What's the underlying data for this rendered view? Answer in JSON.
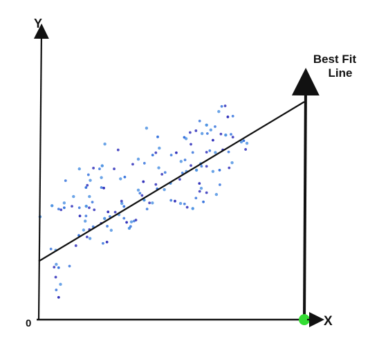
{
  "chart_data": {
    "type": "scatter",
    "title": "",
    "xlabel": "X",
    "ylabel": "Y",
    "origin_label": "0",
    "grid": false,
    "legend": "none",
    "annotation": {
      "text_line1": "Best Fit",
      "text_line2": "Line"
    },
    "colors": {
      "axis": "#111111",
      "fit_line": "#111111",
      "point_light": "#4a90e2",
      "point_mid": "#2f6fdc",
      "point_dark": "#2a2ab8",
      "origin_marker": "#33dd33"
    },
    "fit_line": {
      "x": [
        0,
        100
      ],
      "y": [
        22.8,
        85.1
      ]
    },
    "xlim": [
      0,
      100
    ],
    "ylim": [
      0,
      100
    ],
    "series": [
      {
        "values": [
          [
            0.5,
            40.2
          ],
          [
            4.6,
            27.6
          ],
          [
            5.8,
            20.5
          ],
          [
            6.6,
            21.6
          ],
          [
            7.5,
            20.3
          ],
          [
            6.4,
            16.6
          ],
          [
            8.2,
            13.8
          ],
          [
            6.6,
            11.6
          ],
          [
            7.5,
            8.7
          ],
          [
            6.4,
            27.1
          ],
          [
            11.6,
            20.9
          ],
          [
            14.0,
            28.9
          ],
          [
            5.0,
            44.5
          ],
          [
            7.5,
            43.2
          ],
          [
            8.4,
            42.9
          ],
          [
            9.6,
            45.6
          ],
          [
            9.6,
            43.7
          ],
          [
            12.5,
            44.3
          ],
          [
            13.1,
            48.1
          ],
          [
            15.3,
            43.7
          ],
          [
            15.5,
            40.5
          ],
          [
            17.5,
            38.5
          ],
          [
            17.8,
            40.5
          ],
          [
            19.0,
            43.7
          ],
          [
            17.9,
            44.3
          ],
          [
            20.2,
            45.9
          ],
          [
            20.9,
            42.9
          ],
          [
            19.1,
            48.1
          ],
          [
            17.8,
            51.6
          ],
          [
            18.3,
            52.5
          ],
          [
            19.4,
            54.4
          ],
          [
            23.6,
            51.6
          ],
          [
            24.5,
            51.4
          ],
          [
            23.6,
            55.5
          ],
          [
            22.9,
            58.9
          ],
          [
            20.6,
            59.2
          ],
          [
            23.9,
            60.1
          ],
          [
            20.5,
            36.3
          ],
          [
            19.1,
            35.2
          ],
          [
            16.9,
            35.0
          ],
          [
            15.1,
            32.9
          ],
          [
            18.2,
            32.3
          ],
          [
            19.3,
            31.7
          ],
          [
            24.2,
            29.8
          ],
          [
            25.7,
            30.3
          ],
          [
            27.3,
            34.9
          ],
          [
            25.8,
            36.5
          ],
          [
            23.5,
            37.6
          ],
          [
            24.8,
            39.5
          ],
          [
            26.8,
            40.3
          ],
          [
            28.8,
            42.0
          ],
          [
            31.3,
            45.4
          ],
          [
            32.1,
            44.2
          ],
          [
            31.2,
            46.3
          ],
          [
            30.2,
            41.0
          ],
          [
            32.1,
            39.6
          ],
          [
            33.1,
            38.0
          ],
          [
            34.9,
            38.2
          ],
          [
            35.9,
            38.5
          ],
          [
            36.6,
            38.9
          ],
          [
            34.1,
            35.7
          ],
          [
            34.6,
            36.4
          ],
          [
            28.4,
            58.9
          ],
          [
            30.8,
            55.0
          ],
          [
            32.4,
            55.7
          ],
          [
            35.4,
            60.7
          ],
          [
            37.5,
            62.7
          ],
          [
            39.8,
            61.1
          ],
          [
            39.4,
            53.9
          ],
          [
            37.5,
            50.6
          ],
          [
            38.1,
            49.4
          ],
          [
            38.9,
            48.5
          ],
          [
            39.7,
            46.7
          ],
          [
            40.8,
            43.2
          ],
          [
            41.7,
            45.6
          ],
          [
            42.8,
            45.6
          ],
          [
            44.6,
            51.1
          ],
          [
            44.1,
            52.8
          ],
          [
            47.3,
            50.8
          ],
          [
            49.8,
            46.6
          ],
          [
            51.3,
            46.3
          ],
          [
            53.4,
            45.4
          ],
          [
            54.9,
            45.2
          ],
          [
            55.9,
            43.9
          ],
          [
            58.0,
            43.4
          ],
          [
            59.2,
            47.5
          ],
          [
            60.6,
            50.1
          ],
          [
            61.2,
            51.3
          ],
          [
            62.0,
            46.0
          ],
          [
            63.2,
            49.6
          ],
          [
            66.9,
            48.9
          ],
          [
            68.2,
            52.7
          ],
          [
            60.5,
            53.2
          ],
          [
            55.6,
            57.9
          ],
          [
            54.1,
            57.3
          ],
          [
            53.1,
            54.8
          ],
          [
            49.6,
            53.3
          ],
          [
            47.6,
            57.5
          ],
          [
            46.4,
            56.8
          ],
          [
            45.2,
            59.3
          ],
          [
            42.9,
            64.3
          ],
          [
            44.1,
            65.2
          ],
          [
            45.4,
            67.0
          ],
          [
            49.9,
            64.3
          ],
          [
            51.8,
            65.2
          ],
          [
            53.6,
            61.8
          ],
          [
            55.1,
            62.4
          ],
          [
            57.3,
            60.2
          ],
          [
            59.4,
            58.4
          ],
          [
            61.3,
            59.9
          ],
          [
            63.2,
            59.9
          ],
          [
            65.6,
            57.9
          ],
          [
            68.1,
            58.4
          ],
          [
            71.7,
            59.3
          ],
          [
            72.8,
            61.3
          ],
          [
            71.5,
            65.5
          ],
          [
            69.3,
            66.3
          ],
          [
            66.5,
            65.3
          ],
          [
            64.4,
            66.0
          ],
          [
            63.2,
            65.4
          ],
          [
            61.0,
            60.9
          ],
          [
            58.0,
            65.3
          ],
          [
            57.3,
            68.5
          ],
          [
            55.5,
            70.7
          ],
          [
            54.8,
            71.2
          ],
          [
            57.0,
            73.1
          ],
          [
            61.5,
            72.7
          ],
          [
            63.5,
            72.7
          ],
          [
            65.6,
            70.1
          ],
          [
            64.8,
            74.1
          ],
          [
            66.4,
            75.4
          ],
          [
            68.6,
            72.5
          ],
          [
            70.4,
            72.1
          ],
          [
            72.4,
            72.4
          ],
          [
            73.1,
            71.3
          ],
          [
            76.3,
            69.4
          ],
          [
            77.2,
            69.9
          ],
          [
            77.9,
            66.5
          ],
          [
            78.4,
            68.9
          ],
          [
            73.1,
            79.5
          ],
          [
            71.2,
            79.2
          ],
          [
            67.8,
            81.3
          ],
          [
            68.9,
            83.3
          ],
          [
            70.2,
            83.5
          ],
          [
            63.2,
            76.0
          ],
          [
            60.6,
            77.6
          ],
          [
            59.2,
            73.8
          ],
          [
            40.6,
            74.8
          ],
          [
            44.8,
            71.4
          ],
          [
            29.9,
            66.3
          ],
          [
            24.9,
            68.6
          ],
          [
            18.7,
            56.6
          ],
          [
            26.1,
            42.1
          ],
          [
            15.3,
            58.9
          ],
          [
            10.1,
            54.3
          ]
        ]
      }
    ]
  }
}
